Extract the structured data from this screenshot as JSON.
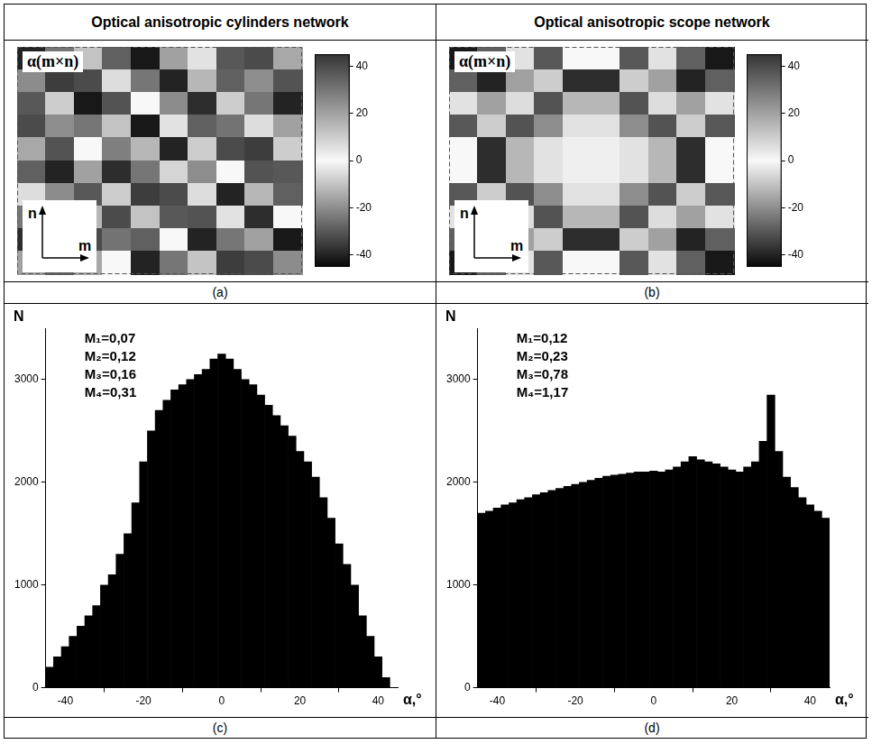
{
  "chart_data": [
    {
      "type": "heatmap",
      "title": "Optical anisotropic cylinders network",
      "panel": "(a)",
      "label": "α(m×n)",
      "x_label": "m",
      "y_label": "n",
      "tick_labels": false,
      "cells": [
        [
          -40,
          30,
          -10,
          35,
          -42,
          20,
          5,
          -30,
          40,
          -15
        ],
        [
          25,
          -35,
          40,
          -5,
          30,
          -40,
          15,
          35,
          -20,
          38
        ],
        [
          -30,
          10,
          -42,
          38,
          0,
          25,
          -38,
          10,
          30,
          -40
        ],
        [
          40,
          -20,
          30,
          -10,
          -42,
          5,
          35,
          -25,
          -5,
          20
        ],
        [
          -15,
          38,
          0,
          28,
          15,
          -40,
          10,
          40,
          -35,
          10
        ],
        [
          35,
          -40,
          20,
          -38,
          30,
          8,
          -20,
          0,
          38,
          -30
        ],
        [
          -5,
          25,
          -30,
          10,
          -35,
          40,
          -5,
          -40,
          15,
          35
        ],
        [
          30,
          -42,
          15,
          40,
          -10,
          -30,
          38,
          5,
          -38,
          0
        ],
        [
          -38,
          5,
          40,
          -25,
          35,
          0,
          -40,
          30,
          20,
          -42
        ],
        [
          20,
          35,
          -15,
          0,
          -40,
          30,
          12,
          -35,
          40,
          25
        ]
      ],
      "colorbar": {
        "range": [
          -45,
          45
        ],
        "ticks": [
          -40,
          -20,
          0,
          20,
          40
        ]
      }
    },
    {
      "type": "heatmap",
      "title": "Optical anisotropic scope network",
      "panel": "(b)",
      "label": "α(m×n)",
      "x_label": "m",
      "y_label": "n",
      "tick_labels": false,
      "cells": [
        [
          -42,
          35,
          5,
          -30,
          0,
          0,
          -30,
          5,
          35,
          -42
        ],
        [
          35,
          -40,
          20,
          10,
          -38,
          -38,
          10,
          20,
          -40,
          35
        ],
        [
          5,
          20,
          -5,
          38,
          15,
          15,
          38,
          -5,
          20,
          5
        ],
        [
          -30,
          10,
          38,
          -20,
          5,
          5,
          -20,
          38,
          10,
          -30
        ],
        [
          0,
          -38,
          15,
          5,
          2,
          2,
          5,
          15,
          -38,
          0
        ],
        [
          0,
          -38,
          15,
          5,
          2,
          2,
          5,
          15,
          -38,
          0
        ],
        [
          -30,
          10,
          38,
          -20,
          5,
          5,
          -20,
          38,
          10,
          -30
        ],
        [
          5,
          20,
          -5,
          38,
          15,
          15,
          38,
          -5,
          20,
          5
        ],
        [
          35,
          -40,
          20,
          10,
          -38,
          -38,
          10,
          20,
          -40,
          35
        ],
        [
          -42,
          35,
          5,
          -30,
          0,
          0,
          -30,
          5,
          35,
          -42
        ]
      ],
      "colorbar": {
        "range": [
          -45,
          45
        ],
        "ticks": [
          -40,
          -20,
          0,
          20,
          40
        ]
      }
    },
    {
      "type": "histogram",
      "panel": "(c)",
      "x_label": "α,°",
      "y_label": "N",
      "color": "#000000",
      "grid": false,
      "annotations": [
        "M₁=0,07",
        "M₂=0,12",
        "M₃=0,16",
        "M₄=0,31"
      ],
      "bins": [
        -45,
        -43,
        -41,
        -39,
        -37,
        -35,
        -33,
        -31,
        -29,
        -27,
        -25,
        -23,
        -21,
        -19,
        -17,
        -15,
        -13,
        -11,
        -9,
        -7,
        -5,
        -3,
        -1,
        1,
        3,
        5,
        7,
        9,
        11,
        13,
        15,
        17,
        19,
        21,
        23,
        25,
        27,
        29,
        31,
        33,
        35,
        37,
        39,
        41,
        43,
        45
      ],
      "values": [
        200,
        300,
        400,
        500,
        600,
        700,
        800,
        1000,
        1100,
        1300,
        1500,
        1800,
        2200,
        2500,
        2700,
        2800,
        2900,
        2950,
        3000,
        3050,
        3100,
        3200,
        3250,
        3200,
        3100,
        3000,
        2950,
        2850,
        2750,
        2650,
        2550,
        2450,
        2300,
        2200,
        2050,
        1850,
        1650,
        1400,
        1200,
        1000,
        700,
        500,
        300,
        100,
        0
      ],
      "xlim": [
        -45,
        45
      ],
      "xticks": [
        -40,
        -20,
        0,
        20,
        40
      ],
      "ylim": [
        0,
        3500
      ],
      "yticks": [
        0,
        1000,
        2000,
        3000
      ]
    },
    {
      "type": "histogram",
      "panel": "(d)",
      "x_label": "α,°",
      "y_label": "N",
      "color": "#000000",
      "grid": false,
      "annotations": [
        "M₁=0,12",
        "M₂=0,23",
        "M₃=0,78",
        "M₄=1,17"
      ],
      "bins": [
        -45,
        -43,
        -41,
        -39,
        -37,
        -35,
        -33,
        -31,
        -29,
        -27,
        -25,
        -23,
        -21,
        -19,
        -17,
        -15,
        -13,
        -11,
        -9,
        -7,
        -5,
        -3,
        -1,
        1,
        3,
        5,
        7,
        9,
        11,
        13,
        15,
        17,
        19,
        21,
        23,
        25,
        27,
        29,
        31,
        33,
        35,
        37,
        39,
        41,
        43,
        45
      ],
      "values": [
        1700,
        1720,
        1750,
        1780,
        1800,
        1830,
        1850,
        1880,
        1900,
        1920,
        1940,
        1960,
        1980,
        2000,
        2020,
        2040,
        2060,
        2070,
        2080,
        2090,
        2100,
        2100,
        2110,
        2100,
        2120,
        2150,
        2200,
        2250,
        2220,
        2200,
        2180,
        2150,
        2120,
        2100,
        2150,
        2200,
        2400,
        2850,
        2300,
        2050,
        1950,
        1850,
        1780,
        1720,
        1650
      ],
      "xlim": [
        -45,
        45
      ],
      "xticks": [
        -40,
        -20,
        0,
        20,
        40
      ],
      "ylim": [
        0,
        3500
      ],
      "yticks": [
        0,
        1000,
        2000,
        3000
      ]
    }
  ]
}
